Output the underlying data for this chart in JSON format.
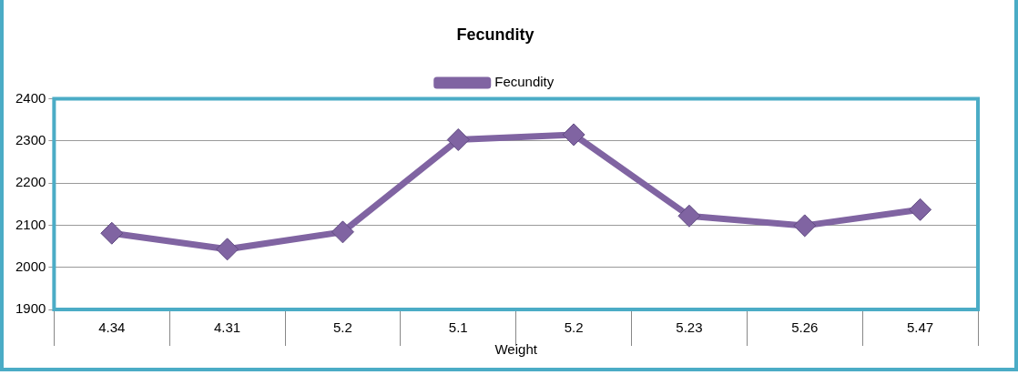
{
  "chart_data": {
    "type": "line",
    "title": "Fecundity",
    "xlabel": "Weight",
    "categories": [
      "4.34",
      "4.31",
      "5.2",
      "5.1",
      "5.2",
      "5.23",
      "5.26",
      "5.47"
    ],
    "series": [
      {
        "name": "Fecundity",
        "color": "#8064a2",
        "values": [
          2081,
          2043,
          2084,
          2303,
          2315,
          2122,
          2099,
          2137
        ]
      }
    ],
    "ylim": [
      1900,
      2400
    ],
    "yticks": [
      1900,
      2000,
      2100,
      2200,
      2300,
      2400
    ],
    "grid": "y",
    "legend": "top",
    "marker": "diamond",
    "line_style": "solid"
  }
}
